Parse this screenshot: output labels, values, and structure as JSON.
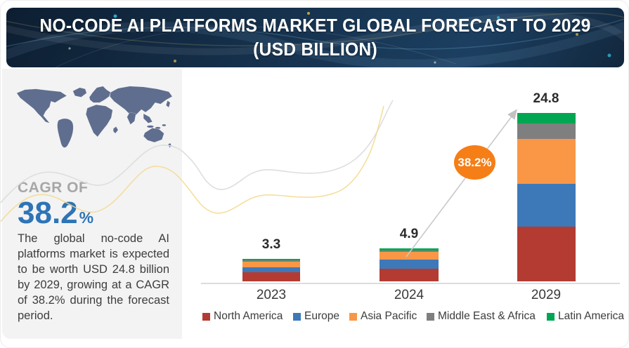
{
  "header": {
    "title": "NO-CODE AI PLATFORMS MARKET GLOBAL FORECAST TO 2029 (USD BILLION)"
  },
  "sidebar": {
    "cagr_label": "CAGR OF",
    "cagr_value": "38.2",
    "cagr_unit": "%",
    "description": "The global no-code AI platforms market is expected to be worth USD 24.8 billion by 2029, growing at a CAGR of 38.2% during the forecast period."
  },
  "annotation": {
    "growth_badge": "38.2%"
  },
  "colors": {
    "north_america": "#b43b32",
    "europe": "#3d79b8",
    "asia_pacific": "#f99746",
    "middle_east_africa": "#7f7f7f",
    "latin_america": "#00a651",
    "cagr_blue": "#2e74b6",
    "badge_orange": "#f57e17",
    "header_navy": "#16324e",
    "map_slate": "#5f6e8e"
  },
  "chart_data": {
    "type": "bar",
    "stacked": true,
    "title": "NO-CODE AI PLATFORMS MARKET GLOBAL FORECAST TO 2029 (USD BILLION)",
    "unit": "USD Billion",
    "categories": [
      "2023",
      "2024",
      "2029"
    ],
    "totals": [
      3.3,
      4.9,
      24.8
    ],
    "series": [
      {
        "name": "North America",
        "color": "#b43b32",
        "values": [
          1.3,
          1.9,
          8.1
        ]
      },
      {
        "name": "Europe",
        "color": "#3d79b8",
        "values": [
          0.8,
          1.3,
          6.3
        ]
      },
      {
        "name": "Asia Pacific",
        "color": "#f99746",
        "values": [
          0.8,
          1.1,
          6.6
        ]
      },
      {
        "name": "Middle East & Africa",
        "color": "#7f7f7f",
        "values": [
          0.2,
          0.3,
          2.2
        ]
      },
      {
        "name": "Latin America",
        "color": "#00a651",
        "values": [
          0.2,
          0.3,
          1.6
        ]
      }
    ],
    "cagr_annotation": "38.2%",
    "legend_position": "bottom",
    "grid": false,
    "ylim": [
      0,
      26
    ]
  }
}
